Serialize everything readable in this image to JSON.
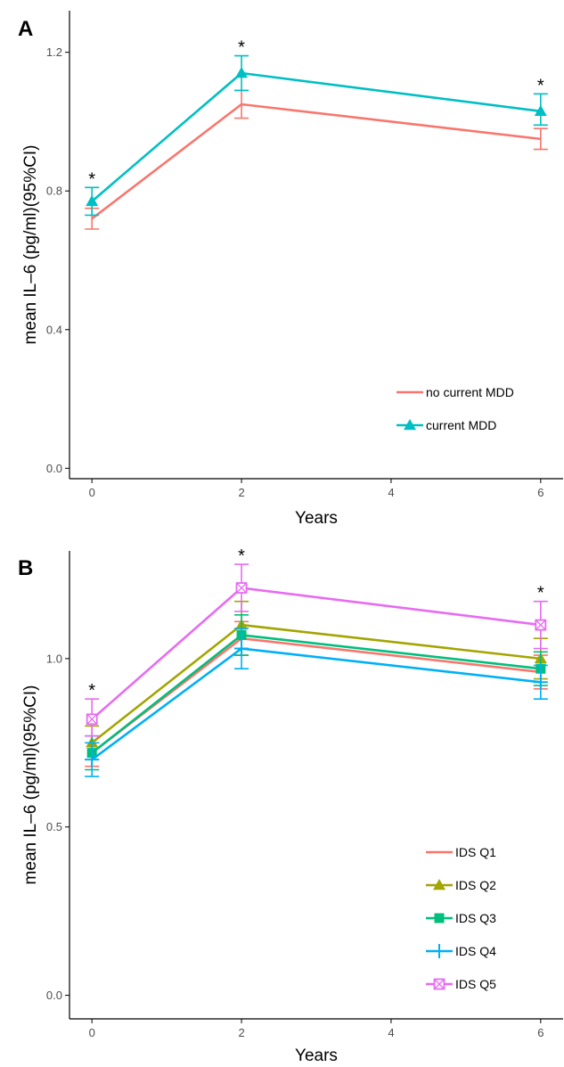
{
  "chart_data": [
    {
      "type": "line",
      "panel_label": "A",
      "xlabel": "Years",
      "ylabel": "mean IL–6 (pg/ml)(95%CI)",
      "xlim": [
        -0.3,
        6.3
      ],
      "ylim": [
        -0.03,
        1.32
      ],
      "x_ticks": [
        0,
        2,
        4,
        6
      ],
      "y_ticks": [
        0.0,
        0.4,
        0.8,
        1.2
      ],
      "y_tick_labels": [
        "0.0",
        "0.4",
        "0.8",
        "1.2"
      ],
      "x": [
        0,
        2,
        6
      ],
      "legend_position": "bottom-right",
      "series": [
        {
          "name": "no current MDD",
          "color": "#F8766D",
          "marker": "none",
          "values": [
            0.72,
            1.05,
            0.95
          ],
          "ci_low": [
            0.69,
            1.01,
            0.92
          ],
          "ci_high": [
            0.75,
            1.09,
            0.98
          ]
        },
        {
          "name": "current MDD",
          "color": "#00BFC4",
          "marker": "triangle",
          "values": [
            0.77,
            1.14,
            1.03
          ],
          "ci_low": [
            0.73,
            1.09,
            0.99
          ],
          "ci_high": [
            0.81,
            1.19,
            1.08
          ]
        }
      ],
      "annotations": [
        {
          "x": 0,
          "text": "*"
        },
        {
          "x": 2,
          "text": "*"
        },
        {
          "x": 6,
          "text": "*"
        }
      ]
    },
    {
      "type": "line",
      "panel_label": "B",
      "xlabel": "Years",
      "ylabel": "mean IL–6 (pg/ml)(95%CI)",
      "xlim": [
        -0.3,
        6.3
      ],
      "ylim": [
        -0.07,
        1.32
      ],
      "x_ticks": [
        0,
        2,
        4,
        6
      ],
      "y_ticks": [
        0.0,
        0.5,
        1.0
      ],
      "y_tick_labels": [
        "0.0",
        "0.5",
        "1.0"
      ],
      "x": [
        0,
        2,
        6
      ],
      "legend_position": "bottom-right",
      "series": [
        {
          "name": "IDS Q1",
          "color": "#F8766D",
          "marker": "none",
          "values": [
            0.72,
            1.06,
            0.96
          ],
          "ci_low": [
            0.68,
            1.01,
            0.91
          ],
          "ci_high": [
            0.77,
            1.11,
            1.01
          ]
        },
        {
          "name": "IDS Q2",
          "color": "#A3A500",
          "marker": "triangle",
          "values": [
            0.75,
            1.1,
            1.0
          ],
          "ci_low": [
            0.7,
            1.03,
            0.94
          ],
          "ci_high": [
            0.8,
            1.17,
            1.06
          ]
        },
        {
          "name": "IDS Q3",
          "color": "#00BF7D",
          "marker": "square",
          "values": [
            0.72,
            1.07,
            0.97
          ],
          "ci_low": [
            0.67,
            1.01,
            0.92
          ],
          "ci_high": [
            0.77,
            1.13,
            1.02
          ]
        },
        {
          "name": "IDS Q4",
          "color": "#00B0F6",
          "marker": "plus",
          "values": [
            0.7,
            1.03,
            0.93
          ],
          "ci_low": [
            0.65,
            0.97,
            0.88
          ],
          "ci_high": [
            0.75,
            1.09,
            0.98
          ]
        },
        {
          "name": "IDS Q5",
          "color": "#E76BF3",
          "marker": "square-cross",
          "values": [
            0.82,
            1.21,
            1.1
          ],
          "ci_low": [
            0.77,
            1.14,
            1.03
          ],
          "ci_high": [
            0.88,
            1.28,
            1.17
          ]
        }
      ],
      "annotations": [
        {
          "x": 0,
          "text": "*"
        },
        {
          "x": 2,
          "text": "*"
        },
        {
          "x": 6,
          "text": "*"
        }
      ]
    }
  ]
}
